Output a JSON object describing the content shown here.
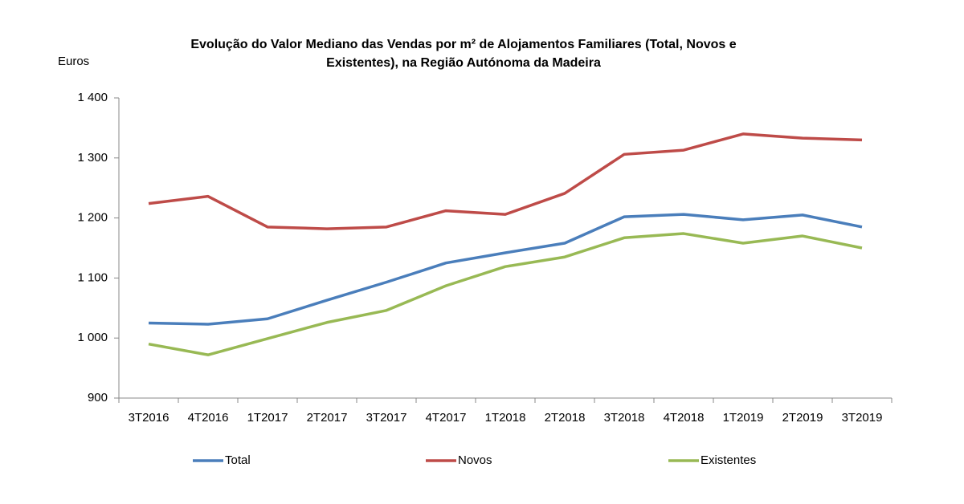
{
  "chart_data": {
    "type": "line",
    "title": [
      "Evolução do Valor Mediano das Vendas por m² de Alojamentos Familiares (Total, Novos e",
      "Existentes), na Região Autónoma da Madeira"
    ],
    "y_label": "Euros",
    "categories": [
      "3T2016",
      "4T2016",
      "1T2017",
      "2T2017",
      "3T2017",
      "4T2017",
      "1T2018",
      "2T2018",
      "3T2018",
      "4T2018",
      "1T2019",
      "2T2019",
      "3T2019"
    ],
    "series": [
      {
        "name": "Total",
        "color": "#4a7ebb",
        "values": [
          1025,
          1023,
          1032,
          1063,
          1093,
          1125,
          1142,
          1158,
          1202,
          1206,
          1197,
          1205,
          1185
        ]
      },
      {
        "name": "Novos",
        "color": "#be4b48",
        "values": [
          1224,
          1236,
          1185,
          1182,
          1185,
          1212,
          1206,
          1241,
          1306,
          1313,
          1340,
          1333,
          1330
        ]
      },
      {
        "name": "Existentes",
        "color": "#98b954",
        "values": [
          990,
          972,
          999,
          1026,
          1046,
          1087,
          1119,
          1135,
          1167,
          1174,
          1158,
          1170,
          1150
        ]
      }
    ],
    "ylim": [
      900,
      1400
    ],
    "yticks": [
      {
        "value": 900,
        "label": "900"
      },
      {
        "value": 1000,
        "label": "1 000"
      },
      {
        "value": 1100,
        "label": "1 100"
      },
      {
        "value": 1200,
        "label": "1 200"
      },
      {
        "value": 1300,
        "label": "1 300"
      },
      {
        "value": 1400,
        "label": "1 400"
      }
    ],
    "grid": false,
    "legend": "bottom"
  }
}
